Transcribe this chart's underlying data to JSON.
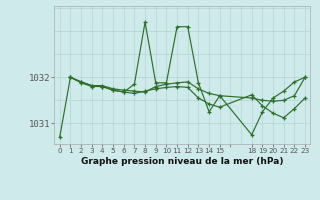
{
  "bg_color": "#ceeaea",
  "grid_color": "#b8d8d8",
  "line_color": "#2d6e2d",
  "title": "Graphe pression niveau de la mer (hPa)",
  "ylabel_ticks": [
    1031,
    1032
  ],
  "xlim": [
    -0.5,
    23.5
  ],
  "ylim": [
    1030.55,
    1033.55
  ],
  "series": [
    {
      "x": [
        1,
        2,
        3,
        4,
        5,
        6,
        7,
        8,
        9,
        10,
        11,
        12,
        13,
        14,
        15,
        18,
        19,
        20,
        21,
        22,
        23
      ],
      "y": [
        1032.0,
        1031.9,
        1031.82,
        1031.82,
        1031.75,
        1031.72,
        1031.7,
        1031.68,
        1031.8,
        1031.85,
        1031.88,
        1031.9,
        1031.75,
        1031.65,
        1031.6,
        1031.55,
        1031.5,
        1031.48,
        1031.5,
        1031.6,
        1032.0
      ]
    },
    {
      "x": [
        1,
        2,
        3,
        4,
        5,
        6,
        7,
        8,
        9,
        10,
        11,
        12,
        13,
        14,
        15,
        18,
        19,
        20,
        21,
        22,
        23
      ],
      "y": [
        1032.0,
        1031.88,
        1031.8,
        1031.8,
        1031.72,
        1031.68,
        1031.85,
        1033.2,
        1031.88,
        1031.88,
        1033.1,
        1033.1,
        1031.88,
        1031.25,
        1031.6,
        1030.75,
        1031.25,
        1031.55,
        1031.7,
        1031.9,
        1032.0
      ]
    },
    {
      "x": [
        0,
        1,
        2,
        3,
        4,
        5,
        6,
        7,
        8,
        9,
        10,
        11,
        12,
        13,
        14,
        15,
        18,
        19,
        20,
        21,
        22,
        23
      ],
      "y": [
        1030.7,
        1032.0,
        1031.9,
        1031.82,
        1031.8,
        1031.72,
        1031.68,
        1031.65,
        1031.7,
        1031.75,
        1031.78,
        1031.8,
        1031.78,
        1031.55,
        1031.42,
        1031.35,
        1031.62,
        1031.38,
        1031.22,
        1031.12,
        1031.32,
        1031.55
      ]
    }
  ],
  "xtick_labels": [
    "0",
    "1",
    "2",
    "3",
    "4",
    "5",
    "6",
    "7",
    "8",
    "9",
    "10",
    "11",
    "12",
    "13",
    "14",
    "15",
    "",
    "18",
    "19",
    "20",
    "21",
    "22",
    "23"
  ],
  "xtick_positions": [
    0,
    1,
    2,
    3,
    4,
    5,
    6,
    7,
    8,
    9,
    10,
    11,
    12,
    13,
    14,
    15,
    16,
    18,
    19,
    20,
    21,
    22,
    23
  ]
}
